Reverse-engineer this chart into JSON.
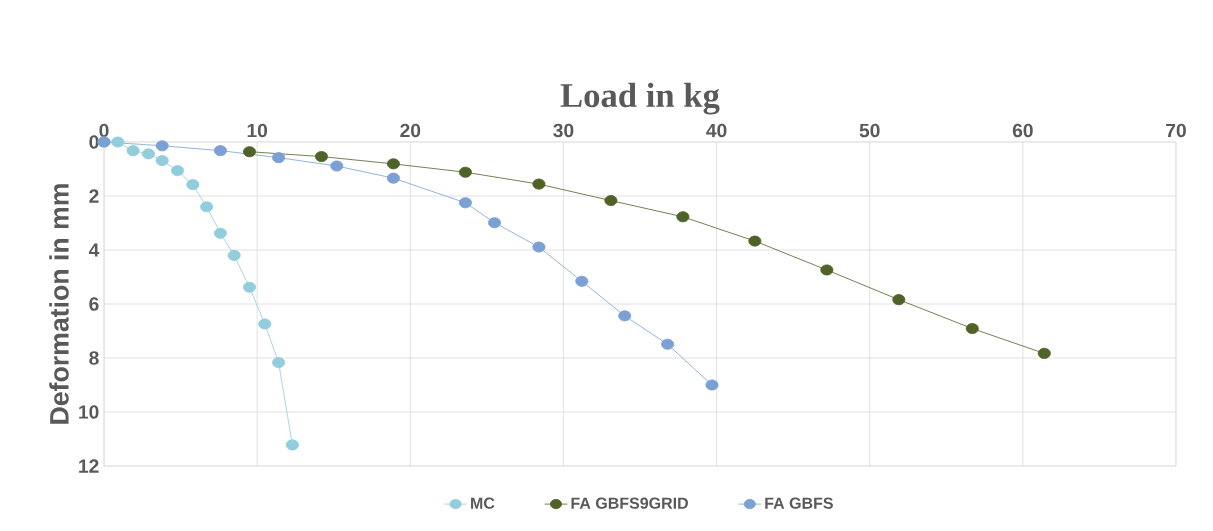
{
  "chart_data": {
    "type": "line",
    "xlabel": "Load in kg",
    "ylabel": "Deformation in mm",
    "xlim": [
      0,
      70
    ],
    "xticks": [
      0,
      10,
      20,
      30,
      40,
      50,
      60,
      70
    ],
    "ylim": [
      12,
      0
    ],
    "yticks": [
      0,
      2,
      4,
      6,
      8,
      10,
      12
    ],
    "grid": true,
    "legend": "bottom",
    "marker": "circle",
    "line_style": "solid",
    "series": [
      {
        "name": "MC",
        "color": "#92cddc",
        "x": [
          0,
          0.9,
          1.9,
          2.9,
          3.8,
          4.8,
          5.8,
          6.7,
          7.6,
          8.5,
          9.5,
          10.5,
          11.4,
          12.3
        ],
        "values": [
          0,
          0,
          0.32,
          0.44,
          0.69,
          1.06,
          1.58,
          2.4,
          3.38,
          4.2,
          5.38,
          6.74,
          8.17,
          11.22
        ]
      },
      {
        "name": "FA GBFS9GRID",
        "color": "#4f6228",
        "x": [
          9.5,
          14.2,
          18.9,
          23.6,
          28.4,
          33.1,
          37.8,
          42.5,
          47.2,
          51.9,
          56.7,
          61.4
        ],
        "values": [
          0.36,
          0.54,
          0.81,
          1.12,
          1.56,
          2.17,
          2.77,
          3.67,
          4.74,
          5.84,
          6.91,
          7.83
        ]
      },
      {
        "name": "FA GBFS",
        "color": "#7ba0d4",
        "x": [
          0,
          3.8,
          7.6,
          11.4,
          15.2,
          18.9,
          23.6,
          25.5,
          28.4,
          31.2,
          34.0,
          36.8,
          39.7
        ],
        "values": [
          0,
          0.14,
          0.32,
          0.58,
          0.89,
          1.34,
          2.25,
          2.99,
          3.89,
          5.16,
          6.44,
          7.49,
          9.0
        ]
      }
    ]
  }
}
